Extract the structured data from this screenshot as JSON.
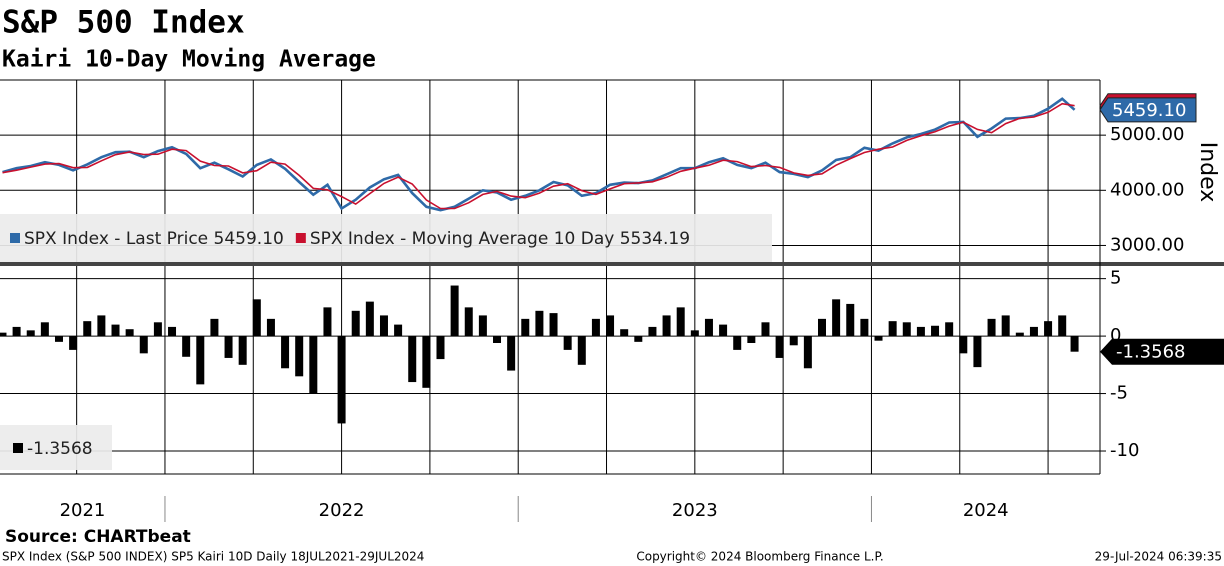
{
  "title": "S&P 500 Index",
  "subtitle": "Kairi 10-Day Moving Average",
  "source": "Source: CHARTbeat",
  "footer": {
    "left": "SPX Index (S&P 500 INDEX) SP5 Kairi 10D  Daily 18JUL2021-29JUL2024",
    "center": "Copyright© 2024 Bloomberg Finance L.P.",
    "right": "29-Jul-2024 06:39:35"
  },
  "chart_data": [
    {
      "type": "line",
      "ylabel": "Index",
      "xlim": [
        2021.533,
        2024.647
      ],
      "xgrid": [
        2021.75,
        2022,
        2022.25,
        2022.5,
        2022.75,
        2023,
        2023.25,
        2023.5,
        2023.75,
        2024,
        2024.25,
        2024.5
      ],
      "ylim": [
        2700,
        6000
      ],
      "yticks": [
        {
          "value": 3000,
          "label": "3000.00"
        },
        {
          "value": 4000,
          "label": "4000.00"
        },
        {
          "value": 5000,
          "label": "5000.00"
        }
      ],
      "grid": true,
      "x": [
        2021.54,
        2021.58,
        2021.62,
        2021.66,
        2021.7,
        2021.74,
        2021.78,
        2021.82,
        2021.86,
        2021.9,
        2021.94,
        2021.98,
        2022.02,
        2022.06,
        2022.1,
        2022.14,
        2022.18,
        2022.22,
        2022.26,
        2022.3,
        2022.34,
        2022.38,
        2022.42,
        2022.46,
        2022.5,
        2022.54,
        2022.58,
        2022.62,
        2022.66,
        2022.7,
        2022.74,
        2022.78,
        2022.82,
        2022.86,
        2022.9,
        2022.94,
        2022.98,
        2023.02,
        2023.06,
        2023.1,
        2023.14,
        2023.18,
        2023.22,
        2023.26,
        2023.3,
        2023.34,
        2023.38,
        2023.42,
        2023.46,
        2023.5,
        2023.54,
        2023.58,
        2023.62,
        2023.66,
        2023.7,
        2023.74,
        2023.78,
        2023.82,
        2023.86,
        2023.9,
        2023.94,
        2023.98,
        2024.02,
        2024.06,
        2024.1,
        2024.14,
        2024.18,
        2024.22,
        2024.26,
        2024.3,
        2024.34,
        2024.38,
        2024.42,
        2024.46,
        2024.5,
        2024.54,
        2024.575
      ],
      "series": [
        {
          "name": "SPX Index - Last Price 5459.10",
          "color": "#2e6aa8",
          "last_label": "5459.10",
          "values": [
            4330,
            4400,
            4440,
            4510,
            4460,
            4360,
            4470,
            4600,
            4690,
            4700,
            4600,
            4710,
            4780,
            4660,
            4400,
            4500,
            4380,
            4250,
            4460,
            4560,
            4390,
            4150,
            3920,
            4100,
            3670,
            3830,
            4050,
            4200,
            4280,
            3950,
            3700,
            3640,
            3700,
            3850,
            4000,
            3960,
            3830,
            3900,
            4000,
            4150,
            4090,
            3900,
            3950,
            4100,
            4140,
            4130,
            4180,
            4290,
            4400,
            4400,
            4510,
            4580,
            4460,
            4400,
            4500,
            4330,
            4300,
            4240,
            4360,
            4550,
            4600,
            4770,
            4720,
            4850,
            4960,
            5020,
            5100,
            5230,
            5240,
            4970,
            5120,
            5300,
            5310,
            5350,
            5480,
            5660,
            5459.1
          ]
        },
        {
          "name": "SPX Index - Moving Average 10 Day 5534.19",
          "color": "#c8102e",
          "values": [
            4320,
            4365,
            4420,
            4475,
            4485,
            4410,
            4415,
            4535,
            4645,
            4695,
            4650,
            4655,
            4745,
            4720,
            4530,
            4450,
            4440,
            4315,
            4355,
            4510,
            4475,
            4270,
            4035,
            4010,
            3885,
            3750,
            3940,
            4125,
            4240,
            4115,
            3825,
            3670,
            3670,
            3775,
            3925,
            3980,
            3895,
            3865,
            3950,
            4075,
            4120,
            3995,
            3925,
            4025,
            4120,
            4135,
            4155,
            4235,
            4345,
            4400,
            4455,
            4545,
            4520,
            4430,
            4450,
            4415,
            4315,
            4270,
            4300,
            4455,
            4575,
            4685,
            4745,
            4785,
            4905,
            4990,
            5060,
            5165,
            5235,
            5105,
            5045,
            5210,
            5305,
            5330,
            5415,
            5570,
            5534.19
          ]
        }
      ]
    },
    {
      "type": "bar",
      "xlim": [
        2021.533,
        2024.647
      ],
      "xgrid": [
        2021.75,
        2022,
        2022.25,
        2022.5,
        2022.75,
        2023,
        2023.25,
        2023.5,
        2023.75,
        2024,
        2024.25,
        2024.5
      ],
      "year_labels": [
        "2021",
        "2022",
        "2023",
        "2024"
      ],
      "year_breaks": [
        2022,
        2023,
        2024
      ],
      "ylim": [
        -12,
        6.1
      ],
      "yticks": [
        5,
        0,
        -5,
        -10
      ],
      "grid": true,
      "x": [
        2021.54,
        2021.58,
        2021.62,
        2021.66,
        2021.7,
        2021.74,
        2021.78,
        2021.82,
        2021.86,
        2021.9,
        2021.94,
        2021.98,
        2022.02,
        2022.06,
        2022.1,
        2022.14,
        2022.18,
        2022.22,
        2022.26,
        2022.3,
        2022.34,
        2022.38,
        2022.42,
        2022.46,
        2022.5,
        2022.54,
        2022.58,
        2022.62,
        2022.66,
        2022.7,
        2022.74,
        2022.78,
        2022.82,
        2022.86,
        2022.9,
        2022.94,
        2022.98,
        2023.02,
        2023.06,
        2023.1,
        2023.14,
        2023.18,
        2023.22,
        2023.26,
        2023.3,
        2023.34,
        2023.38,
        2023.42,
        2023.46,
        2023.5,
        2023.54,
        2023.58,
        2023.62,
        2023.66,
        2023.7,
        2023.74,
        2023.78,
        2023.82,
        2023.86,
        2023.9,
        2023.94,
        2023.98,
        2024.02,
        2024.06,
        2024.1,
        2024.14,
        2024.18,
        2024.22,
        2024.26,
        2024.3,
        2024.34,
        2024.38,
        2024.42,
        2024.46,
        2024.5,
        2024.54,
        2024.575
      ],
      "series": [
        {
          "color": "#000000",
          "last_label": "-1.3568",
          "values": [
            0.3,
            0.8,
            0.5,
            1.2,
            -0.5,
            -1.2,
            1.3,
            1.8,
            1.0,
            0.6,
            -1.5,
            1.2,
            0.8,
            -1.8,
            -4.2,
            1.5,
            -1.9,
            -2.5,
            3.2,
            1.5,
            -2.8,
            -3.5,
            -5.0,
            2.5,
            -7.6,
            2.2,
            3.0,
            1.8,
            1.0,
            -4.0,
            -4.5,
            -2.0,
            4.4,
            2.5,
            1.8,
            -0.6,
            -3.0,
            1.5,
            2.2,
            2.0,
            -1.2,
            -2.5,
            1.5,
            1.8,
            0.6,
            -0.5,
            0.8,
            1.8,
            2.5,
            0.5,
            1.5,
            1.0,
            -1.2,
            -0.6,
            1.2,
            -1.9,
            -0.8,
            -2.8,
            1.5,
            3.2,
            2.8,
            1.5,
            -0.4,
            1.3,
            1.2,
            0.8,
            0.9,
            1.2,
            -1.5,
            -2.7,
            1.5,
            1.8,
            0.3,
            0.8,
            1.3,
            1.8,
            -1.3568
          ]
        }
      ]
    }
  ]
}
